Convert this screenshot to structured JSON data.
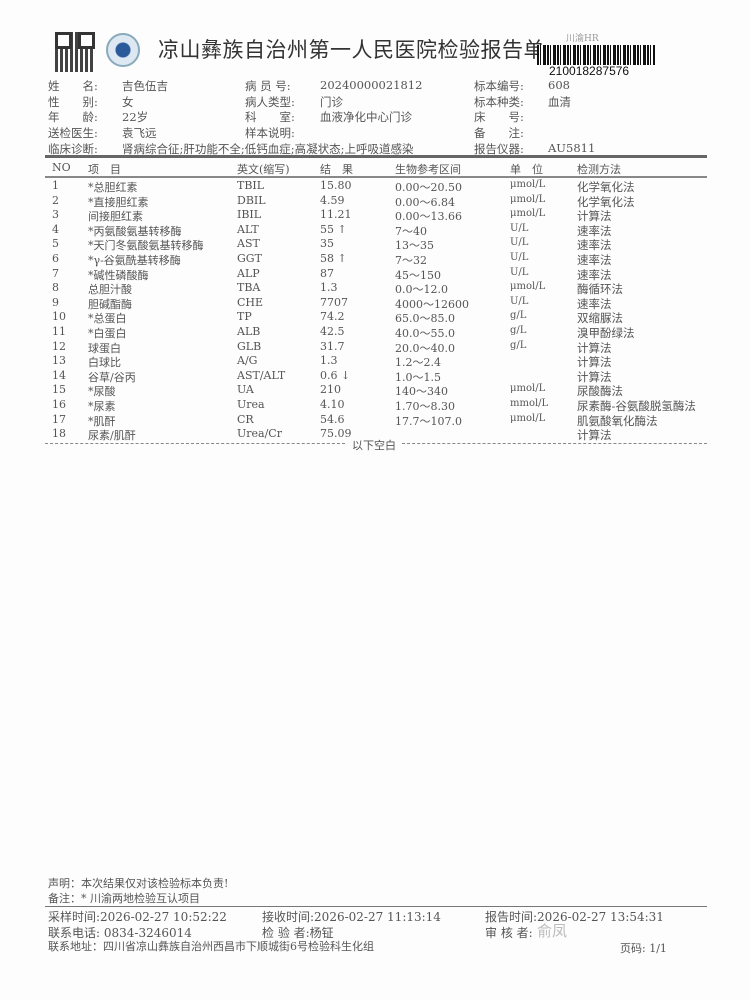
{
  "header": {
    "title": "凉山彝族自治州第一人民医院检验报告单",
    "barcode_tag": "川渝HR",
    "barcode_number": "210018287576"
  },
  "patient": [
    [
      {
        "label": "姓　　名:",
        "value": "吉色伍吉"
      },
      {
        "label": "病 员 号:",
        "value": "20240000021812"
      },
      {
        "label": "标本编号:",
        "value": "608"
      }
    ],
    [
      {
        "label": "性　　别:",
        "value": "女"
      },
      {
        "label": "病人类型:",
        "value": "门诊"
      },
      {
        "label": "标本种类:",
        "value": "血清"
      }
    ],
    [
      {
        "label": "年　　龄:",
        "value": "22岁"
      },
      {
        "label": "科　　室:",
        "value": "血液净化中心门诊"
      },
      {
        "label": "床　　号:",
        "value": ""
      }
    ],
    [
      {
        "label": "送检医生:",
        "value": "袁飞远"
      },
      {
        "label": "样本说明:",
        "value": ""
      },
      {
        "label": "备　　注:",
        "value": ""
      }
    ]
  ],
  "diagnosis": {
    "label": "临床诊断:",
    "value": "肾病综合征;肝功能不全;低钙血症;高凝状态;上呼吸道感染",
    "instrument_label": "报告仪器:",
    "instrument": "AU5811"
  },
  "table": {
    "headers": [
      "NO",
      "项　目",
      "英文(缩写)",
      "结　果",
      "生物参考区间",
      "单　位",
      "检测方法"
    ],
    "rows": [
      [
        "1",
        "*总胆红素",
        "TBIL",
        "15.80",
        "0.00～20.50",
        "μmol/L",
        "化学氧化法"
      ],
      [
        "2",
        "*直接胆红素",
        "DBIL",
        "4.59",
        "0.00～6.84",
        "μmol/L",
        "化学氧化法"
      ],
      [
        "3",
        "间接胆红素",
        "IBIL",
        "11.21",
        "0.00～13.66",
        "μmol/L",
        "计算法"
      ],
      [
        "4",
        "*丙氨酸氨基转移酶",
        "ALT",
        "55 ↑",
        "7～40",
        "U/L",
        "速率法"
      ],
      [
        "5",
        "*天门冬氨酸氨基转移酶",
        "AST",
        "35",
        "13～35",
        "U/L",
        "速率法"
      ],
      [
        "6",
        "*γ-谷氨酰基转移酶",
        "GGT",
        "58 ↑",
        "7～32",
        "U/L",
        "速率法"
      ],
      [
        "7",
        "*碱性磷酸酶",
        "ALP",
        "87",
        "45～150",
        "U/L",
        "速率法"
      ],
      [
        "8",
        "总胆汁酸",
        "TBA",
        "1.3",
        "0.0～12.0",
        "μmol/L",
        "酶循环法"
      ],
      [
        "9",
        "胆碱酯酶",
        "CHE",
        "7707",
        "4000～12600",
        "U/L",
        "速率法"
      ],
      [
        "10",
        "*总蛋白",
        "TP",
        "74.2",
        "65.0～85.0",
        "g/L",
        "双缩脲法"
      ],
      [
        "11",
        "*白蛋白",
        "ALB",
        "42.5",
        "40.0～55.0",
        "g/L",
        "溴甲酚绿法"
      ],
      [
        "12",
        "球蛋白",
        "GLB",
        "31.7",
        "20.0～40.0",
        "g/L",
        "计算法"
      ],
      [
        "13",
        "白球比",
        "A/G",
        "1.3",
        "1.2～2.4",
        "",
        "计算法"
      ],
      [
        "14",
        "谷草/谷丙",
        "AST/ALT",
        "0.6 ↓",
        "1.0～1.5",
        "",
        "计算法"
      ],
      [
        "15",
        "*尿酸",
        "UA",
        "210",
        "140～340",
        "μmol/L",
        "尿酸酶法"
      ],
      [
        "16",
        "*尿素",
        "Urea",
        "4.10",
        "1.70～8.30",
        "mmol/L",
        "尿素酶-谷氨酸脱氢酶法"
      ],
      [
        "17",
        "*肌酐",
        "CR",
        "54.6",
        "17.7～107.0",
        "μmol/L",
        "肌氨酸氧化酶法"
      ],
      [
        "18",
        "尿素/肌酐",
        "Urea/Cr",
        "75.09",
        "",
        "",
        "计算法"
      ]
    ],
    "end_note": "以下空白"
  },
  "footer": {
    "statement": "声明：本次结果仅对该检验标本负责!",
    "remark": "备注：* 川渝两地检验互认项目",
    "sample_time": "采样时间:2026-02-27 10:52:22",
    "receive_time": "接收时间:2026-02-27 11:13:14",
    "report_time": "报告时间:2026-02-27 13:54:31",
    "phone": "联系电话: 0834-3246014",
    "tester": "检 验 者:杨钲",
    "reviewer_label": "审 核 者:",
    "reviewer_signature": "俞凤",
    "address": "联系地址：四川省凉山彝族自治州西昌市下顺城街6号检验科生化组",
    "page": "页码: 1/1"
  }
}
